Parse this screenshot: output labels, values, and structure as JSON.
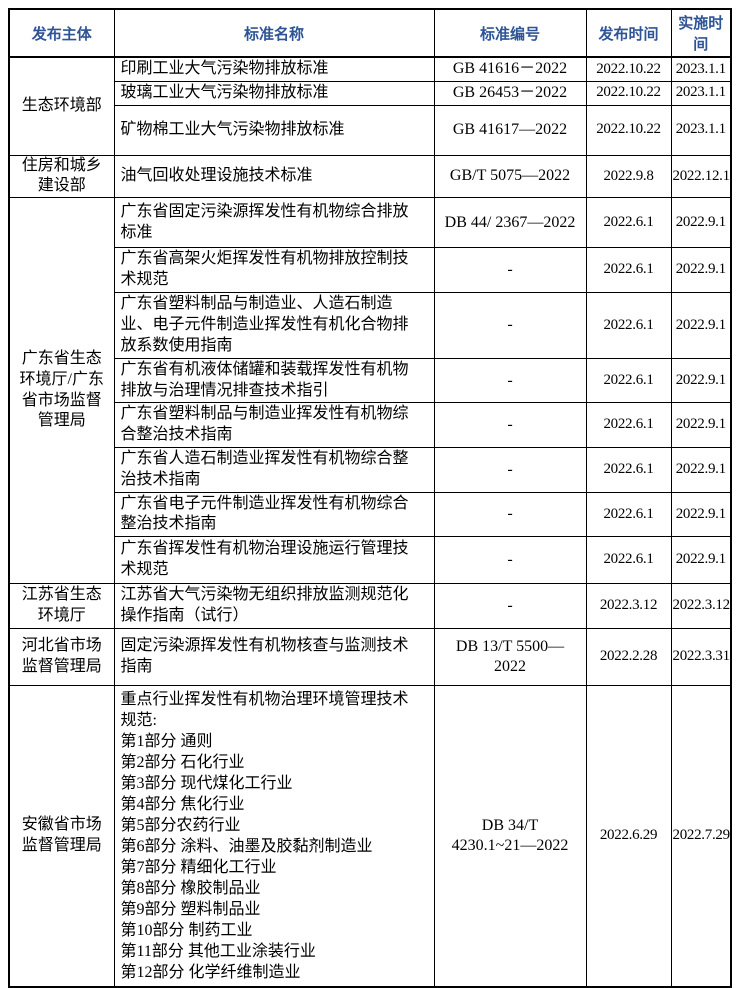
{
  "colors": {
    "header_text": "#2e5496",
    "body_text": "#000000",
    "border": "#000000",
    "background": "#ffffff"
  },
  "table": {
    "headers": [
      "发布主体",
      "标准名称",
      "标准编号",
      "发布时间",
      "实施时间"
    ],
    "groups": [
      {
        "publisher": "生态环境部",
        "rows": [
          {
            "name": "印刷工业大气污染物排放标准",
            "code": "GB 41616－2022",
            "published": "2022.10.22",
            "effective": "2023.1.1"
          },
          {
            "name": "玻璃工业大气污染物排放标准",
            "code": "GB 26453－2022",
            "published": "2022.10.22",
            "effective": "2023.1.1"
          },
          {
            "name": "矿物棉工业大气污染物排放标准",
            "code": "GB 41617—2022",
            "published": "2022.10.22",
            "effective": "2023.1.1"
          }
        ]
      },
      {
        "publisher": "住房和城乡建设部",
        "rows": [
          {
            "name": "油气回收处理设施技术标准",
            "code": "GB/T 5075—2022",
            "published": "2022.9.8",
            "effective": "2022.12.1"
          }
        ]
      },
      {
        "publisher": "广东省生态环境厅/广东省市场监督管理局",
        "rows": [
          {
            "name": "广东省固定污染源挥发性有机物综合排放标准",
            "code": "DB 44/ 2367—2022",
            "published": "2022.6.1",
            "effective": "2022.9.1"
          },
          {
            "name": "广东省高架火炬挥发性有机物排放控制技术规范",
            "code": "-",
            "published": "2022.6.1",
            "effective": "2022.9.1"
          },
          {
            "name": "广东省塑料制品与制造业、人造石制造业、电子元件制造业挥发性有机化合物排放系数使用指南",
            "code": "-",
            "published": "2022.6.1",
            "effective": "2022.9.1"
          },
          {
            "name": "广东省有机液体储罐和装载挥发性有机物排放与治理情况排查技术指引",
            "code": "-",
            "published": "2022.6.1",
            "effective": "2022.9.1"
          },
          {
            "name": "广东省塑料制品与制造业挥发性有机物综合整治技术指南",
            "code": "-",
            "published": "2022.6.1",
            "effective": "2022.9.1"
          },
          {
            "name": "广东省人造石制造业挥发性有机物综合整治技术指南",
            "code": "-",
            "published": "2022.6.1",
            "effective": "2022.9.1"
          },
          {
            "name": "广东省电子元件制造业挥发性有机物综合整治技术指南",
            "code": "-",
            "published": "2022.6.1",
            "effective": "2022.9.1"
          },
          {
            "name": "广东省挥发性有机物治理设施运行管理技术规范",
            "code": "-",
            "published": "2022.6.1",
            "effective": "2022.9.1"
          }
        ]
      },
      {
        "publisher": "江苏省生态环境厅",
        "rows": [
          {
            "name": "江苏省大气污染物无组织排放监测规范化操作指南（试行）",
            "code": "-",
            "published": "2022.3.12",
            "effective": "2022.3.12"
          }
        ]
      },
      {
        "publisher": "河北省市场监督管理局",
        "rows": [
          {
            "name": "固定污染源挥发性有机物核查与监测技术指南",
            "code": "DB 13/T 5500—\n2022",
            "published": "2022.2.28",
            "effective": "2022.3.31"
          }
        ]
      },
      {
        "publisher": "安徽省市场监督管理局",
        "rows": [
          {
            "name": "重点行业挥发性有机物治理环境管理技术规范:\n第1部分 通则\n第2部分 石化行业\n第3部分 现代煤化工行业\n第4部分 焦化行业\n第5部分农药行业\n第6部分 涂料、油墨及胶黏剂制造业\n第7部分 精细化工行业\n第8部分 橡胶制品业\n第9部分 塑料制品业\n第10部分 制药工业\n第11部分 其他工业涂装行业\n第12部分 化学纤维制造业",
            "code": "DB 34/T\n4230.1~21—2022",
            "published": "2022.6.29",
            "effective": "2022.7.29"
          }
        ]
      }
    ]
  }
}
